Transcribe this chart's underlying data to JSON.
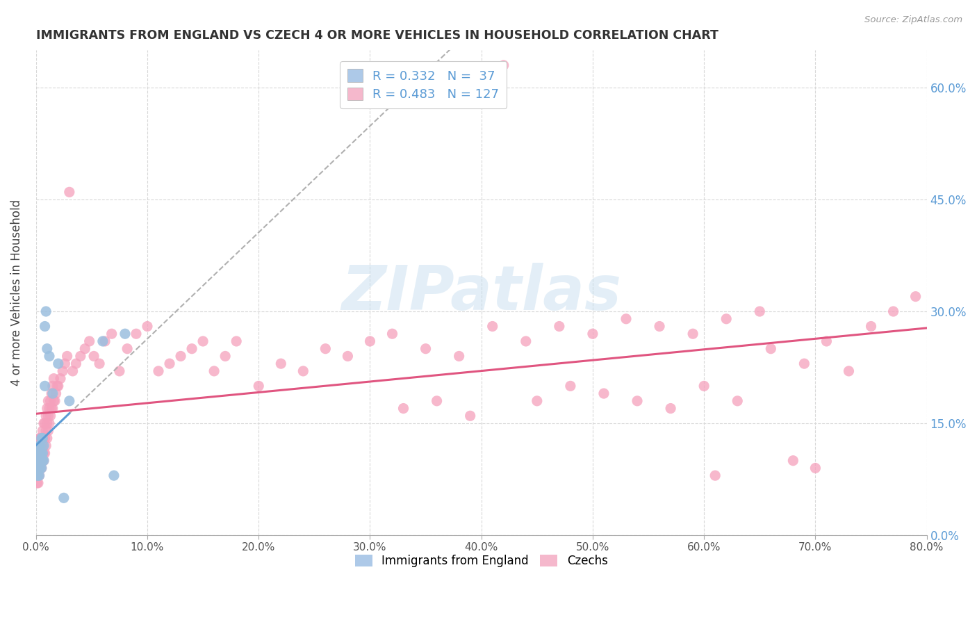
{
  "title": "IMMIGRANTS FROM ENGLAND VS CZECH 4 OR MORE VEHICLES IN HOUSEHOLD CORRELATION CHART",
  "source": "Source: ZipAtlas.com",
  "ylabel": "4 or more Vehicles in Household",
  "legend_entries": [
    {
      "label": "Immigrants from England",
      "R": "0.332",
      "N": "37",
      "color": "#adc9e8"
    },
    {
      "label": "Czechs",
      "R": "0.483",
      "N": "127",
      "color": "#f5b8cc"
    }
  ],
  "england_scatter_color": "#9bbfdf",
  "czech_scatter_color": "#f5a0bc",
  "england_line_color": "#5b9bd5",
  "england_dash_color": "#b0b0b0",
  "czech_line_color": "#e05580",
  "watermark_text": "ZIPatlas",
  "watermark_color": "#c8dff0",
  "xlim": [
    0.0,
    0.8
  ],
  "ylim": [
    0.0,
    0.65
  ],
  "x_ticks": [
    0.0,
    0.1,
    0.2,
    0.3,
    0.4,
    0.5,
    0.6,
    0.7,
    0.8
  ],
  "y_ticks": [
    0.0,
    0.15,
    0.3,
    0.45,
    0.6
  ],
  "background_color": "#ffffff",
  "grid_color": "#d8d8d8",
  "england_x": [
    0.001,
    0.001,
    0.001,
    0.002,
    0.002,
    0.002,
    0.002,
    0.003,
    0.003,
    0.003,
    0.003,
    0.003,
    0.004,
    0.004,
    0.004,
    0.004,
    0.005,
    0.005,
    0.005,
    0.005,
    0.006,
    0.006,
    0.006,
    0.007,
    0.007,
    0.008,
    0.008,
    0.009,
    0.01,
    0.012,
    0.015,
    0.02,
    0.025,
    0.03,
    0.06,
    0.07,
    0.08
  ],
  "england_y": [
    0.08,
    0.09,
    0.1,
    0.08,
    0.09,
    0.1,
    0.11,
    0.08,
    0.09,
    0.1,
    0.11,
    0.12,
    0.09,
    0.1,
    0.11,
    0.12,
    0.09,
    0.1,
    0.11,
    0.13,
    0.1,
    0.11,
    0.13,
    0.1,
    0.12,
    0.2,
    0.28,
    0.3,
    0.25,
    0.24,
    0.19,
    0.23,
    0.05,
    0.18,
    0.26,
    0.08,
    0.27
  ],
  "czech_x": [
    0.001,
    0.001,
    0.001,
    0.001,
    0.001,
    0.001,
    0.002,
    0.002,
    0.002,
    0.002,
    0.002,
    0.002,
    0.003,
    0.003,
    0.003,
    0.003,
    0.003,
    0.003,
    0.004,
    0.004,
    0.004,
    0.004,
    0.004,
    0.005,
    0.005,
    0.005,
    0.005,
    0.005,
    0.006,
    0.006,
    0.006,
    0.006,
    0.007,
    0.007,
    0.007,
    0.007,
    0.008,
    0.008,
    0.008,
    0.009,
    0.009,
    0.009,
    0.01,
    0.01,
    0.01,
    0.011,
    0.011,
    0.011,
    0.012,
    0.012,
    0.013,
    0.013,
    0.014,
    0.014,
    0.015,
    0.015,
    0.016,
    0.016,
    0.017,
    0.018,
    0.019,
    0.02,
    0.022,
    0.024,
    0.026,
    0.028,
    0.03,
    0.033,
    0.036,
    0.04,
    0.044,
    0.048,
    0.052,
    0.057,
    0.062,
    0.068,
    0.075,
    0.082,
    0.09,
    0.1,
    0.11,
    0.12,
    0.13,
    0.14,
    0.15,
    0.16,
    0.17,
    0.18,
    0.2,
    0.22,
    0.24,
    0.26,
    0.28,
    0.3,
    0.32,
    0.35,
    0.38,
    0.41,
    0.44,
    0.47,
    0.5,
    0.53,
    0.56,
    0.59,
    0.62,
    0.65,
    0.33,
    0.36,
    0.39,
    0.42,
    0.45,
    0.48,
    0.51,
    0.54,
    0.57,
    0.6,
    0.63,
    0.66,
    0.69,
    0.71,
    0.73,
    0.75,
    0.77,
    0.79,
    0.61,
    0.68,
    0.7
  ],
  "czech_y": [
    0.08,
    0.09,
    0.1,
    0.11,
    0.12,
    0.07,
    0.08,
    0.09,
    0.1,
    0.11,
    0.12,
    0.07,
    0.08,
    0.09,
    0.1,
    0.11,
    0.12,
    0.13,
    0.09,
    0.1,
    0.11,
    0.12,
    0.13,
    0.09,
    0.1,
    0.11,
    0.12,
    0.13,
    0.1,
    0.11,
    0.12,
    0.14,
    0.1,
    0.11,
    0.13,
    0.15,
    0.11,
    0.13,
    0.15,
    0.12,
    0.14,
    0.16,
    0.13,
    0.15,
    0.17,
    0.14,
    0.16,
    0.18,
    0.15,
    0.17,
    0.16,
    0.18,
    0.17,
    0.19,
    0.17,
    0.2,
    0.18,
    0.21,
    0.18,
    0.19,
    0.2,
    0.2,
    0.21,
    0.22,
    0.23,
    0.24,
    0.46,
    0.22,
    0.23,
    0.24,
    0.25,
    0.26,
    0.24,
    0.23,
    0.26,
    0.27,
    0.22,
    0.25,
    0.27,
    0.28,
    0.22,
    0.23,
    0.24,
    0.25,
    0.26,
    0.22,
    0.24,
    0.26,
    0.2,
    0.23,
    0.22,
    0.25,
    0.24,
    0.26,
    0.27,
    0.25,
    0.24,
    0.28,
    0.26,
    0.28,
    0.27,
    0.29,
    0.28,
    0.27,
    0.29,
    0.3,
    0.17,
    0.18,
    0.16,
    0.63,
    0.18,
    0.2,
    0.19,
    0.18,
    0.17,
    0.2,
    0.18,
    0.25,
    0.23,
    0.26,
    0.22,
    0.28,
    0.3,
    0.32,
    0.08,
    0.1,
    0.09
  ]
}
